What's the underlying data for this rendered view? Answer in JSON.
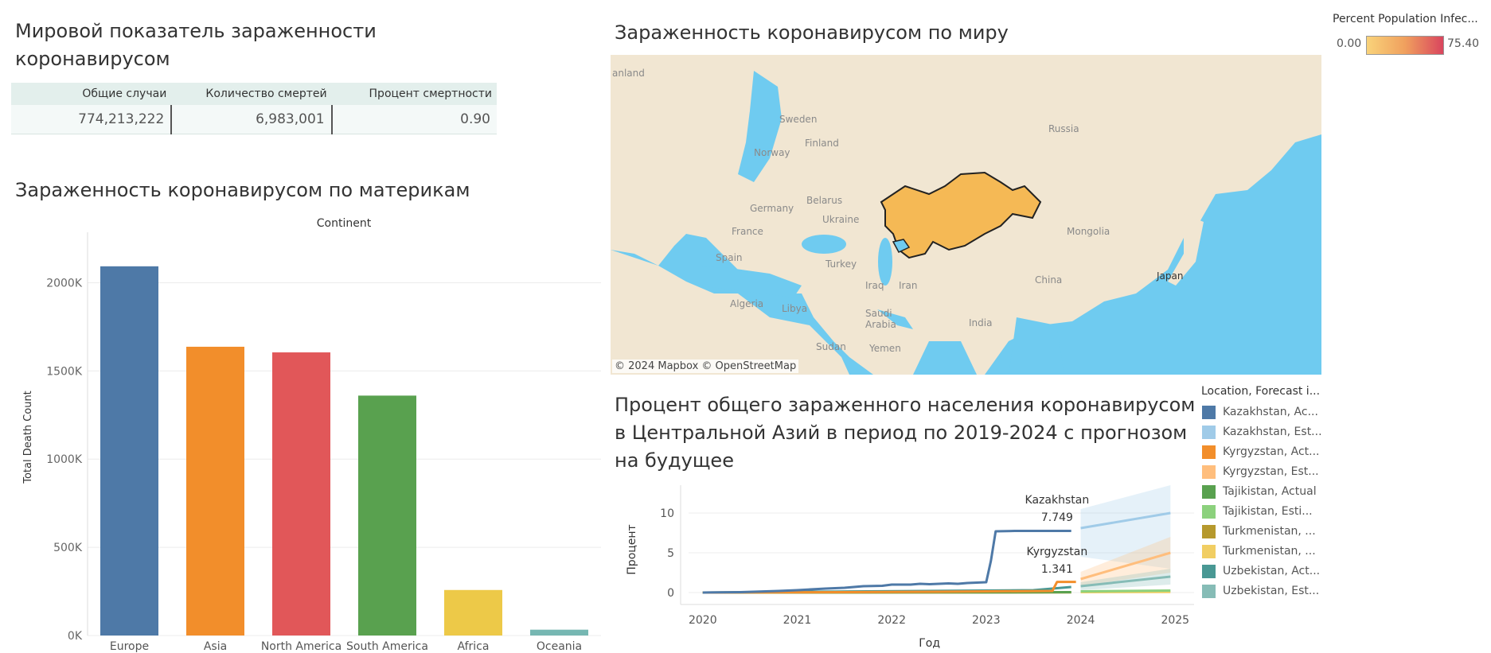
{
  "kpi": {
    "title": "Мировой показатель зараженности коронавирусом",
    "headers": [
      "Общие случаи",
      "Количество смертей",
      "Процент смертности"
    ],
    "values": [
      "774,213,222",
      "6,983,001",
      "0.90"
    ]
  },
  "bar_title": "Зараженность коронавирусом по материкам",
  "map": {
    "title": "Зараженность коронавирусом по миру",
    "attribution": "© 2024 Mapbox  © OpenStreetMap",
    "labels": [
      "anland",
      "Sweden",
      "Finland",
      "Russia",
      "Norway",
      "Germany",
      "Belarus",
      "France",
      "Ukraine",
      "Mongolia",
      "Spain",
      "Turkey",
      "Iraq",
      "Iran",
      "China",
      "Japan",
      "Algeria",
      "Libya",
      "Saudi Arabia",
      "India",
      "Sudan",
      "Yemen"
    ],
    "highlight_colors": {
      "kazakhstan": "#f5b955",
      "small": "#6fcbf0"
    }
  },
  "color_legend": {
    "title": "Percent Population Infec...",
    "min": "0.00",
    "max": "75.40",
    "colors": [
      "#f9d37a",
      "#f0a05e",
      "#d9455e"
    ]
  },
  "line_title": "Процент общего зараженного населения коронавирусом в Центральной Азий в период по 2019-2024 с прогнозом на будущее",
  "line_legend": {
    "title": "Location, Forecast i...",
    "items": [
      {
        "label": "Kazakhstan, Ac...",
        "color": "#4e79a7"
      },
      {
        "label": "Kazakhstan, Est...",
        "color": "#a0cbe8"
      },
      {
        "label": "Kyrgyzstan, Act...",
        "color": "#f28e2b"
      },
      {
        "label": "Kyrgyzstan, Est...",
        "color": "#ffbe7d"
      },
      {
        "label": "Tajikistan, Actual",
        "color": "#59a14f"
      },
      {
        "label": "Tajikistan, Esti...",
        "color": "#8cd17d"
      },
      {
        "label": "Turkmenistan, ...",
        "color": "#b6992d"
      },
      {
        "label": "Turkmenistan, ...",
        "color": "#f1ce63"
      },
      {
        "label": "Uzbekistan, Act...",
        "color": "#499894"
      },
      {
        "label": "Uzbekistan, Est...",
        "color": "#86bcb6"
      }
    ]
  },
  "chart_data": [
    {
      "type": "bar",
      "title": "Зараженность коронавирусом по материкам",
      "header": "Continent",
      "xlabel": "",
      "ylabel": "Total Death Count",
      "categories": [
        "Europe",
        "Asia",
        "North America",
        "South America",
        "Africa",
        "Oceania"
      ],
      "values": [
        2093000,
        1637000,
        1605000,
        1360000,
        258000,
        33000
      ],
      "colors": [
        "#4e79a7",
        "#f28e2b",
        "#e15759",
        "#59a14f",
        "#edc948",
        "#76b7b2"
      ],
      "ylim": [
        0,
        2250000
      ],
      "yticks": [
        0,
        500000,
        1000000,
        1500000,
        2000000
      ],
      "ytick_labels": [
        "0K",
        "500K",
        "1000K",
        "1500K",
        "2000K"
      ],
      "grid": true
    },
    {
      "type": "line",
      "title": "Процент общего зараженного населения коронавирусом в Центральной Азий в период по 2019-2024 с прогнозом на будущее",
      "xlabel": "Год",
      "ylabel": "Процент",
      "xlim": [
        2019.85,
        2025.2
      ],
      "ylim": [
        -1.5,
        13.5
      ],
      "xticks": [
        2020,
        2021,
        2022,
        2023,
        2024,
        2025
      ],
      "yticks": [
        0,
        5,
        10
      ],
      "series": [
        {
          "name": "Kazakhstan, Actual",
          "color": "#4e79a7",
          "width": 3,
          "x": [
            2020.0,
            2020.4,
            2020.8,
            2021.0,
            2021.3,
            2021.5,
            2021.7,
            2021.9,
            2022.0,
            2022.2,
            2022.3,
            2022.4,
            2022.5,
            2022.6,
            2022.7,
            2022.8,
            2022.9,
            2023.0,
            2023.05,
            2023.1,
            2023.3,
            2023.6,
            2023.9
          ],
          "y": [
            0.0,
            0.05,
            0.2,
            0.3,
            0.5,
            0.6,
            0.8,
            0.85,
            1.0,
            1.0,
            1.1,
            1.05,
            1.1,
            1.15,
            1.1,
            1.2,
            1.25,
            1.3,
            4.0,
            7.7,
            7.75,
            7.749,
            7.749
          ]
        },
        {
          "name": "Kazakhstan, Estimate",
          "color": "#a0cbe8",
          "width": 3,
          "x": [
            2024.0,
            2024.95
          ],
          "y": [
            8.1,
            10.0
          ],
          "band_x": [
            2024.0,
            2024.95
          ],
          "band_lo": [
            4.5,
            3.0
          ],
          "band_hi": [
            10.5,
            13.5
          ]
        },
        {
          "name": "Kyrgyzstan, Actual",
          "color": "#f28e2b",
          "width": 3,
          "x": [
            2020.0,
            2021.5,
            2022.5,
            2023.0,
            2023.7,
            2023.75,
            2023.95
          ],
          "y": [
            0.0,
            0.05,
            0.1,
            0.15,
            0.2,
            1.341,
            1.341
          ]
        },
        {
          "name": "Kyrgyzstan, Estimate",
          "color": "#ffbe7d",
          "width": 3,
          "x": [
            2024.0,
            2024.95
          ],
          "y": [
            1.7,
            5.0
          ],
          "band_x": [
            2024.0,
            2024.95
          ],
          "band_lo": [
            0.8,
            2.5
          ],
          "band_hi": [
            2.6,
            7.0
          ]
        },
        {
          "name": "Tajikistan, Actual",
          "color": "#59a14f",
          "width": 3,
          "x": [
            2020.0,
            2023.9
          ],
          "y": [
            0.0,
            0.05
          ]
        },
        {
          "name": "Tajikistan, Estimate",
          "color": "#8cd17d",
          "width": 3,
          "x": [
            2024.0,
            2024.95
          ],
          "y": [
            0.15,
            0.25
          ]
        },
        {
          "name": "Turkmenistan, Actual",
          "color": "#b6992d",
          "width": 3,
          "x": [
            2020.0,
            2023.9
          ],
          "y": [
            0.0,
            0.02
          ]
        },
        {
          "name": "Turkmenistan, Estimate",
          "color": "#f1ce63",
          "width": 3,
          "x": [
            2024.0,
            2024.95
          ],
          "y": [
            0.05,
            0.08
          ]
        },
        {
          "name": "Uzbekistan, Actual",
          "color": "#499894",
          "width": 3,
          "x": [
            2020.0,
            2023.5,
            2023.9
          ],
          "y": [
            0.0,
            0.3,
            0.7
          ]
        },
        {
          "name": "Uzbekistan, Estimate",
          "color": "#86bcb6",
          "width": 3,
          "x": [
            2024.0,
            2024.95
          ],
          "y": [
            0.8,
            2.0
          ],
          "band_x": [
            2024.0,
            2024.95
          ],
          "band_lo": [
            0.3,
            1.0
          ],
          "band_hi": [
            1.3,
            3.0
          ]
        }
      ],
      "annotations": [
        {
          "label": "Kazakhstan",
          "value": "7.749"
        },
        {
          "label": "Kyrgyzstan",
          "value": "1.341"
        }
      ]
    }
  ]
}
